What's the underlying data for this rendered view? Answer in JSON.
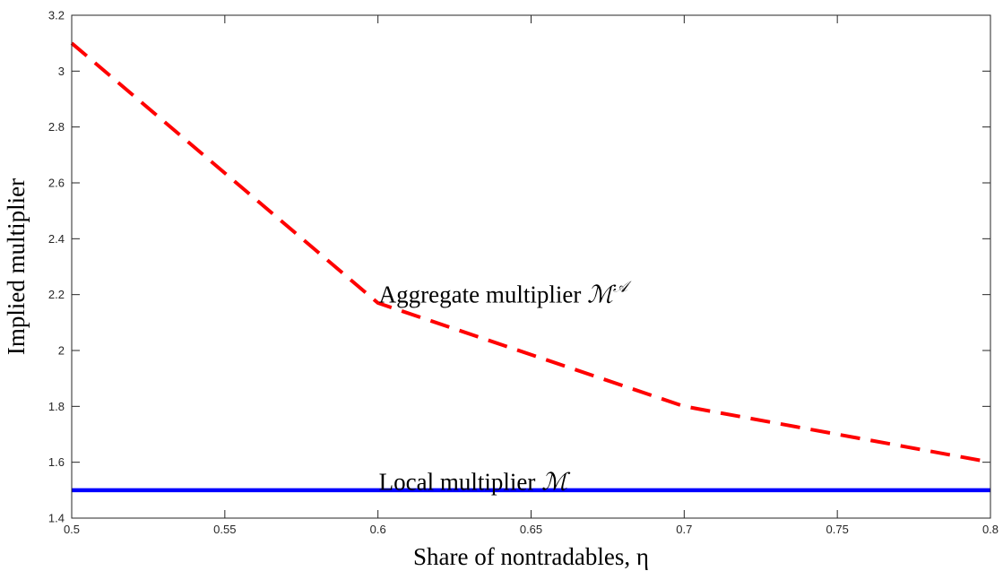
{
  "chart_data": {
    "type": "line",
    "xlabel": "Share of nontradables, η",
    "ylabel": "Implied multiplier",
    "xlim": [
      0.5,
      0.8
    ],
    "ylim": [
      1.4,
      3.2
    ],
    "xticks": [
      "0.5",
      "0.55",
      "0.6",
      "0.65",
      "0.7",
      "0.75",
      "0.8"
    ],
    "yticks": [
      "1.4",
      "1.6",
      "1.8",
      "2",
      "2.2",
      "2.4",
      "2.6",
      "2.8",
      "3",
      "3.2"
    ],
    "grid": false,
    "series": [
      {
        "name": "Aggregate multiplier",
        "color": "#ff0000",
        "style": "dashed",
        "x": [
          0.5,
          0.6,
          0.7,
          0.8
        ],
        "y": [
          3.1,
          2.17,
          1.8,
          1.6
        ]
      },
      {
        "name": "Local multiplier",
        "color": "#0000ff",
        "style": "solid",
        "x": [
          0.5,
          0.6,
          0.7,
          0.8
        ],
        "y": [
          1.5,
          1.5,
          1.5,
          1.5
        ]
      }
    ],
    "annotations": [
      {
        "text": "Aggregate multiplier",
        "math": "ℳ",
        "sup": "𝒜",
        "x": 0.6,
        "y": 2.2
      },
      {
        "text": "Local multiplier",
        "math": "ℳ",
        "x": 0.6,
        "y": 1.53
      }
    ]
  }
}
